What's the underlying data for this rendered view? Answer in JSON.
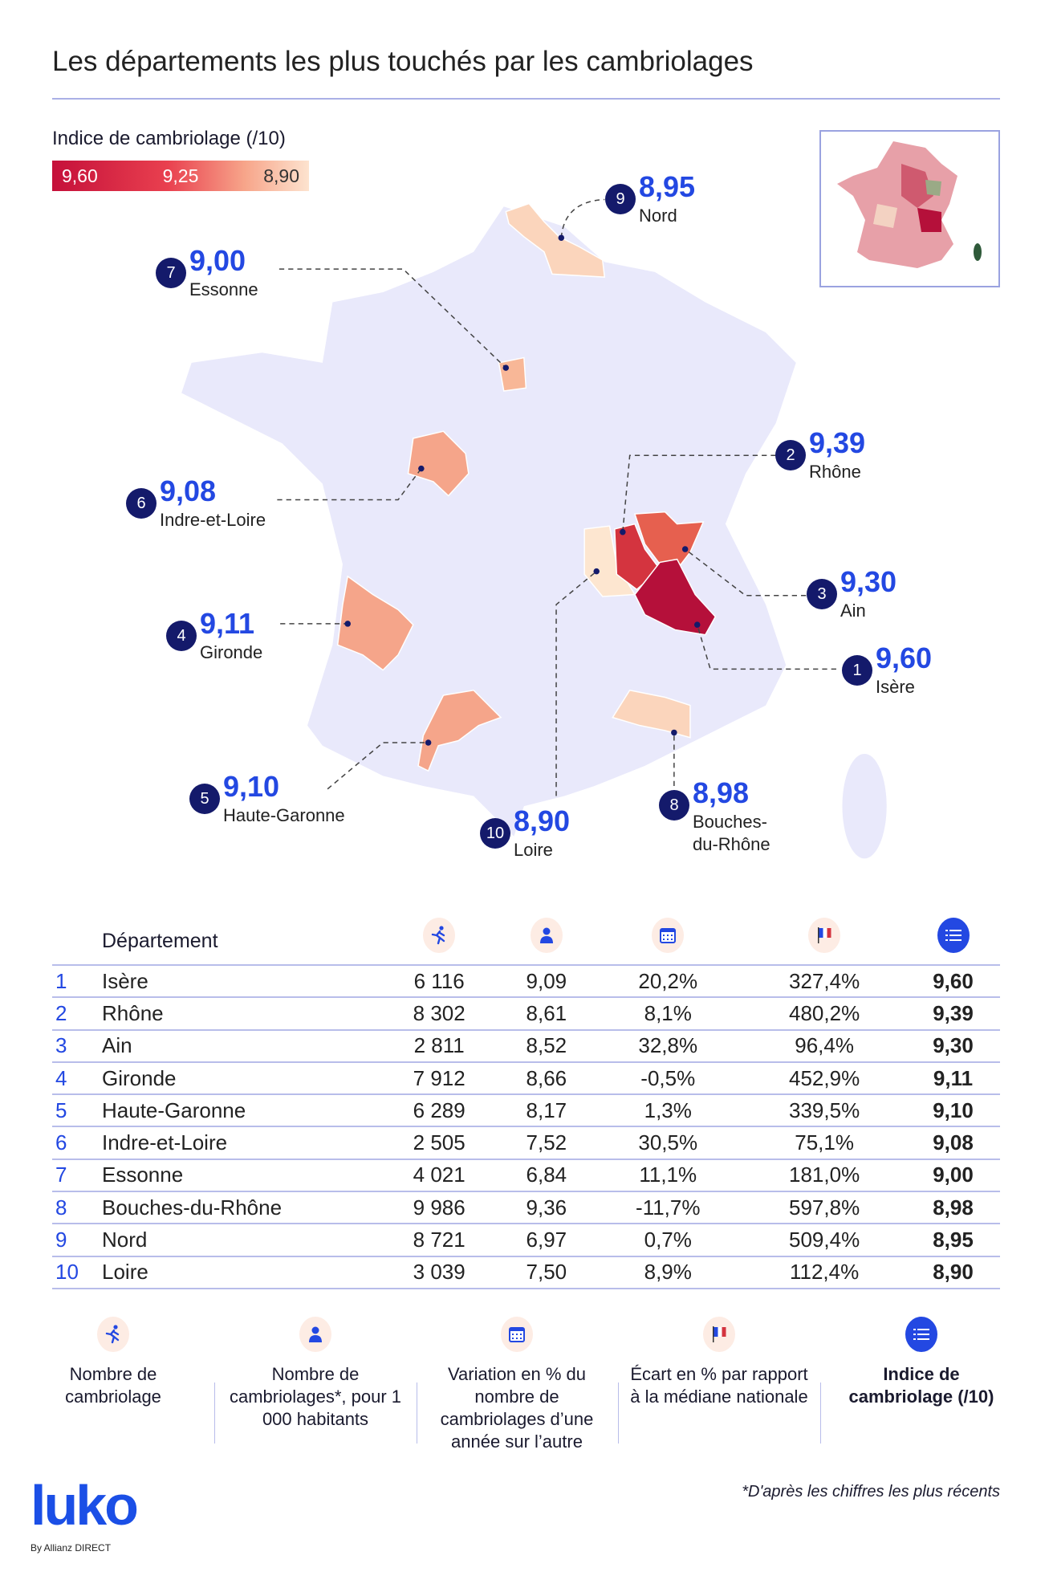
{
  "title": "Les départements les plus touchés par les cambriolages",
  "legend": {
    "label": "Indice de cambriolage (/10)",
    "stops": [
      "9,60",
      "9,25",
      "8,90"
    ]
  },
  "colors": {
    "accent": "#2348e2",
    "badge": "#141a6b",
    "map_base": "#e9e9fb",
    "high": "#b5103a",
    "low": "#fde6d0"
  },
  "chart_data": {
    "type": "table",
    "title": "Les départements les plus touchés par les cambriolages",
    "columns": [
      "Département",
      "Nombre de cambriolage",
      "Nombre de cambriolages*, pour 1 000 habitants",
      "Variation en % du nombre de cambriolages d'une année sur l'autre",
      "Écart en % par rapport à la médiane nationale",
      "Indice de cambriolage (/10)"
    ],
    "rows": [
      {
        "rank": "1",
        "name": "Isère",
        "count": "6 116",
        "per1000": "9,09",
        "variation": "20,2%",
        "ecart": "327,4%",
        "index": "9,60"
      },
      {
        "rank": "2",
        "name": "Rhône",
        "count": "8 302",
        "per1000": "8,61",
        "variation": "8,1%",
        "ecart": "480,2%",
        "index": "9,39"
      },
      {
        "rank": "3",
        "name": "Ain",
        "count": "2 811",
        "per1000": "8,52",
        "variation": "32,8%",
        "ecart": "96,4%",
        "index": "9,30"
      },
      {
        "rank": "4",
        "name": "Gironde",
        "count": "7 912",
        "per1000": "8,66",
        "variation": "-0,5%",
        "ecart": "452,9%",
        "index": "9,11"
      },
      {
        "rank": "5",
        "name": "Haute-Garonne",
        "count": "6 289",
        "per1000": "8,17",
        "variation": "1,3%",
        "ecart": "339,5%",
        "index": "9,10"
      },
      {
        "rank": "6",
        "name": "Indre-et-Loire",
        "count": "2 505",
        "per1000": "7,52",
        "variation": "30,5%",
        "ecart": "75,1%",
        "index": "9,08"
      },
      {
        "rank": "7",
        "name": "Essonne",
        "count": "4 021",
        "per1000": "6,84",
        "variation": "11,1%",
        "ecart": "181,0%",
        "index": "9,00"
      },
      {
        "rank": "8",
        "name": "Bouches-du-Rhône",
        "count": "9 986",
        "per1000": "9,36",
        "variation": "-11,7%",
        "ecart": "597,8%",
        "index": "8,98"
      },
      {
        "rank": "9",
        "name": "Nord",
        "count": "8 721",
        "per1000": "6,97",
        "variation": "0,7%",
        "ecart": "509,4%",
        "index": "8,95"
      },
      {
        "rank": "10",
        "name": "Loire",
        "count": "3 039",
        "per1000": "7,50",
        "variation": "8,9%",
        "ecart": "112,4%",
        "index": "8,90"
      }
    ]
  },
  "map_callouts": [
    {
      "rank": "9",
      "value": "8,95",
      "name": "Nord"
    },
    {
      "rank": "7",
      "value": "9,00",
      "name": "Essonne"
    },
    {
      "rank": "2",
      "value": "9,39",
      "name": "Rhône"
    },
    {
      "rank": "6",
      "value": "9,08",
      "name": "Indre-et-Loire"
    },
    {
      "rank": "3",
      "value": "9,30",
      "name": "Ain"
    },
    {
      "rank": "4",
      "value": "9,11",
      "name": "Gironde"
    },
    {
      "rank": "1",
      "value": "9,60",
      "name": "Isère"
    },
    {
      "rank": "5",
      "value": "9,10",
      "name": "Haute-Garonne"
    },
    {
      "rank": "8",
      "value": "8,98",
      "name": "Bouches-\ndu-Rhône"
    },
    {
      "rank": "10",
      "value": "8,90",
      "name": "Loire"
    }
  ],
  "table_header": {
    "department": "Département",
    "icons": [
      "runner-icon",
      "person-icon",
      "calendar-icon",
      "french-flag-icon",
      "list-icon"
    ]
  },
  "footer_legend": [
    {
      "icon": "runner-icon",
      "label": "Nombre de cambriolage"
    },
    {
      "icon": "person-icon",
      "label": "Nombre de cambriolages*, pour 1 000 habitants"
    },
    {
      "icon": "calendar-icon",
      "label": "Variation en % du nombre de cambriolages d’une année sur l’autre"
    },
    {
      "icon": "french-flag-icon",
      "label": "Écart en % par rapport à la médiane nationale"
    },
    {
      "icon": "list-icon",
      "label": "Indice de cambriolage (/10)"
    }
  ],
  "logo": {
    "name": "luko",
    "sub": "By Allianz DIRECT"
  },
  "footnote": "*D'après les chiffres les plus récents"
}
